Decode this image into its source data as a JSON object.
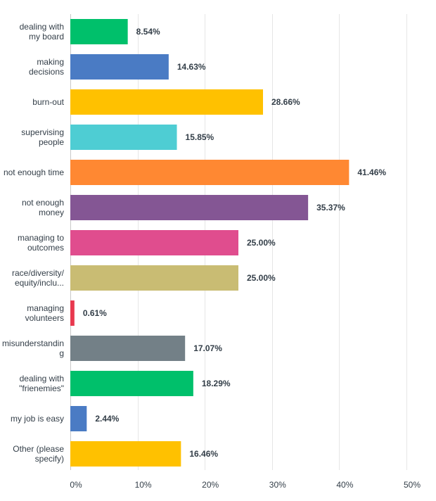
{
  "chart_data": {
    "type": "bar",
    "orientation": "horizontal",
    "categories": [
      [
        "dealing with",
        "my board"
      ],
      [
        "making",
        "decisions"
      ],
      [
        "burn-out"
      ],
      [
        "supervising",
        "people"
      ],
      [
        "not enough time"
      ],
      [
        "not enough",
        "money"
      ],
      [
        "managing to",
        "outcomes"
      ],
      [
        "race/diversity/",
        "equity/inclu..."
      ],
      [
        "managing",
        "volunteers"
      ],
      [
        "misunderstandin",
        "g"
      ],
      [
        "dealing with",
        "\"frienemies\""
      ],
      [
        "my job is easy"
      ],
      [
        "Other (please",
        "specify)"
      ]
    ],
    "values": [
      8.54,
      14.63,
      28.66,
      15.85,
      41.46,
      35.37,
      25.0,
      25.0,
      0.61,
      17.07,
      18.29,
      2.44,
      16.46
    ],
    "value_labels": [
      "8.54%",
      "14.63%",
      "28.66%",
      "15.85%",
      "41.46%",
      "35.37%",
      "25.00%",
      "25.00%",
      "0.61%",
      "17.07%",
      "18.29%",
      "2.44%",
      "16.46%"
    ],
    "colors": [
      "#00c06b",
      "#4a7bc4",
      "#ffc100",
      "#4ecdd3",
      "#ff8832",
      "#845694",
      "#e04d8e",
      "#c9bc73",
      "#e8394f",
      "#738087",
      "#00c06b",
      "#4a7bc4",
      "#ffc100"
    ],
    "xlim": [
      0,
      50
    ],
    "ticks": [
      0,
      10,
      20,
      30,
      40,
      50
    ],
    "tick_labels": [
      "0%",
      "10%",
      "20%",
      "30%",
      "40%",
      "50%"
    ],
    "grid": true,
    "title": "",
    "xlabel": "",
    "ylabel": ""
  }
}
